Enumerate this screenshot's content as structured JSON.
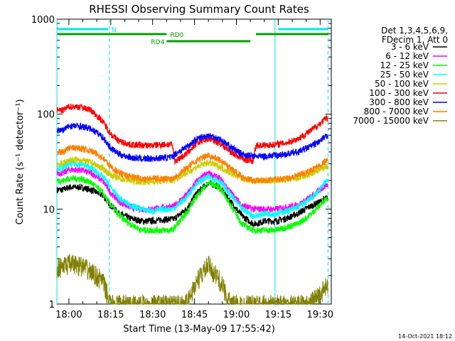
{
  "chart_data": {
    "type": "line",
    "title": "RHESSI Observing Summary Count Rates",
    "xlabel": "Start Time (13-May-09 17:55:42)",
    "ylabel": "Count Rate (s⁻¹ detector⁻¹)",
    "y_scale": "log",
    "ylim": [
      1,
      1000
    ],
    "xlim": [
      "17:55:42",
      "19:34:00"
    ],
    "x_ticks": [
      "18:00",
      "18:15",
      "18:30",
      "18:45",
      "19:00",
      "19:15",
      "19:30"
    ],
    "y_ticks": [
      "1",
      "10",
      "100",
      "1000"
    ],
    "legend_header": [
      "Det 1,3,4,5,6,9,",
      "FDecim 1, Att 0"
    ],
    "legend_placement": "right",
    "date_stamp": "14-Oct-2021 18:12",
    "grid": false,
    "times": [
      "17:58",
      "18:00",
      "18:04",
      "18:08",
      "18:12",
      "18:15",
      "18:18",
      "18:22",
      "18:26",
      "18:30",
      "18:34",
      "18:37",
      "18:38",
      "18:42",
      "18:46",
      "18:50",
      "18:54",
      "18:58",
      "19:02",
      "19:06",
      "19:07",
      "19:10",
      "19:14",
      "19:18",
      "19:22",
      "19:26",
      "19:30",
      "19:32"
    ],
    "series": [
      {
        "name": "3 - 6 keV",
        "color": "#000000",
        "values": [
          16,
          17,
          17,
          16,
          14,
          11,
          9,
          8,
          7.5,
          7.5,
          7.8,
          7.8,
          8,
          10,
          15,
          19,
          17,
          12,
          8.5,
          7,
          7,
          7.5,
          7.5,
          8,
          9,
          10.5,
          12,
          13
        ]
      },
      {
        "name": "6 - 12 keV",
        "color": "#ff00ff",
        "values": [
          24,
          26,
          26,
          24,
          20,
          15,
          12,
          10.5,
          10,
          10,
          10.5,
          10.5,
          11,
          14,
          20,
          24,
          21,
          15,
          11,
          10,
          10,
          10,
          10,
          10.5,
          11,
          13,
          16,
          18
        ]
      },
      {
        "name": "12 - 25 keV",
        "color": "#00ff00",
        "values": [
          20,
          21,
          21,
          19,
          15,
          11,
          8.5,
          7,
          6,
          6,
          6,
          6,
          6.5,
          9,
          14,
          19,
          17,
          11,
          7,
          6,
          6,
          6,
          6,
          6.5,
          7,
          8.5,
          11,
          13
        ]
      },
      {
        "name": "25 - 50 keV",
        "color": "#00ffff",
        "values": [
          27,
          30,
          30,
          27,
          22,
          17,
          13,
          11,
          10,
          9.5,
          10,
          10,
          10.5,
          13,
          19,
          22,
          20,
          14,
          10,
          8.5,
          8.5,
          9,
          9,
          9.5,
          10.5,
          12.5,
          16,
          20
        ]
      },
      {
        "name": "50 - 100 keV",
        "color": "#cccc00",
        "values": [
          30,
          33,
          33,
          31,
          27,
          23,
          21,
          20,
          19.5,
          19.5,
          20,
          20,
          21,
          24,
          28,
          31,
          28,
          24,
          21,
          20,
          20,
          20,
          20,
          20.5,
          21,
          23,
          26,
          28
        ]
      },
      {
        "name": "100 - 300 keV",
        "color": "#ff0000",
        "values": [
          110,
          120,
          120,
          110,
          85,
          62,
          52,
          48,
          47,
          47,
          48,
          48,
          32,
          38,
          50,
          55,
          50,
          40,
          34,
          32,
          47,
          47,
          48,
          50,
          55,
          65,
          80,
          90
        ]
      },
      {
        "name": "300 - 800 keV",
        "color": "#0000ff",
        "values": [
          68,
          75,
          75,
          70,
          58,
          44,
          38,
          35,
          34,
          34,
          35,
          35,
          38,
          45,
          55,
          60,
          55,
          45,
          38,
          36,
          36,
          36,
          37,
          38,
          40,
          45,
          52,
          58
        ]
      },
      {
        "name": "800 - 7000 keV",
        "color": "#ff8000",
        "values": [
          40,
          44,
          44,
          41,
          35,
          28,
          24,
          22,
          21,
          21,
          21,
          21,
          22,
          27,
          33,
          37,
          33,
          27,
          22,
          20,
          20,
          20,
          20.5,
          21,
          22.5,
          25,
          29,
          32
        ]
      },
      {
        "name": "7000 - 15000 keV",
        "color": "#808000",
        "values": [
          2.5,
          2.7,
          2.6,
          2.2,
          1.8,
          1,
          1,
          1,
          1,
          1,
          1,
          1,
          1,
          1,
          1.8,
          2.6,
          1.8,
          1,
          1,
          1,
          1,
          1,
          1,
          1,
          1,
          1,
          1.3,
          1.5
        ]
      }
    ],
    "flags": [
      {
        "label": "N",
        "color": "#00e5ee",
        "segments": [
          [
            "17:56",
            "18:14"
          ],
          [
            "19:15",
            "19:33"
          ]
        ]
      },
      {
        "label": "RD0",
        "color": "#00a000",
        "segments": [
          [
            "17:56",
            "18:35"
          ],
          [
            "19:07",
            "19:33"
          ]
        ]
      },
      {
        "label": "RD4",
        "color": "#00a000",
        "segments": [
          [
            "18:35",
            "19:05"
          ]
        ]
      }
    ],
    "vertical_markers": [
      {
        "time": "17:55:42",
        "style": "solid"
      },
      {
        "time": "18:14:30",
        "style": "dashed"
      },
      {
        "time": "19:13:50",
        "style": "solid"
      },
      {
        "time": "19:32:50",
        "style": "dashed"
      }
    ]
  }
}
